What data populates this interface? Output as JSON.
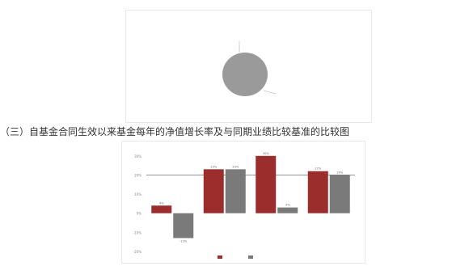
{
  "document": {
    "top_line": "",
    "section_heading": "（三）自基金合同生效以来基金每年的净值增长率及与同期业绩比较基准的比较图"
  },
  "pie_figure": {
    "label_top_1": "",
    "label_top_2": "",
    "label_bottom": "",
    "caption": "",
    "colors": {
      "slice": "#9a9a9a",
      "leader": "#aaaaaa"
    }
  },
  "chart_data": {
    "type": "bar",
    "categories": [
      "",
      "",
      "",
      ""
    ],
    "series": [
      {
        "name": "",
        "color": "#9b2d2d",
        "values": [
          4,
          23,
          30,
          22
        ]
      },
      {
        "name": "",
        "color": "#7a7a7a",
        "values": [
          -13,
          23,
          3,
          20
        ]
      }
    ],
    "ylim": [
      -20,
      35
    ],
    "yticks": [
      -20,
      -10,
      0,
      10,
      20,
      30
    ],
    "data_labels": true,
    "legend_position": "bottom",
    "reference_line": 20
  }
}
